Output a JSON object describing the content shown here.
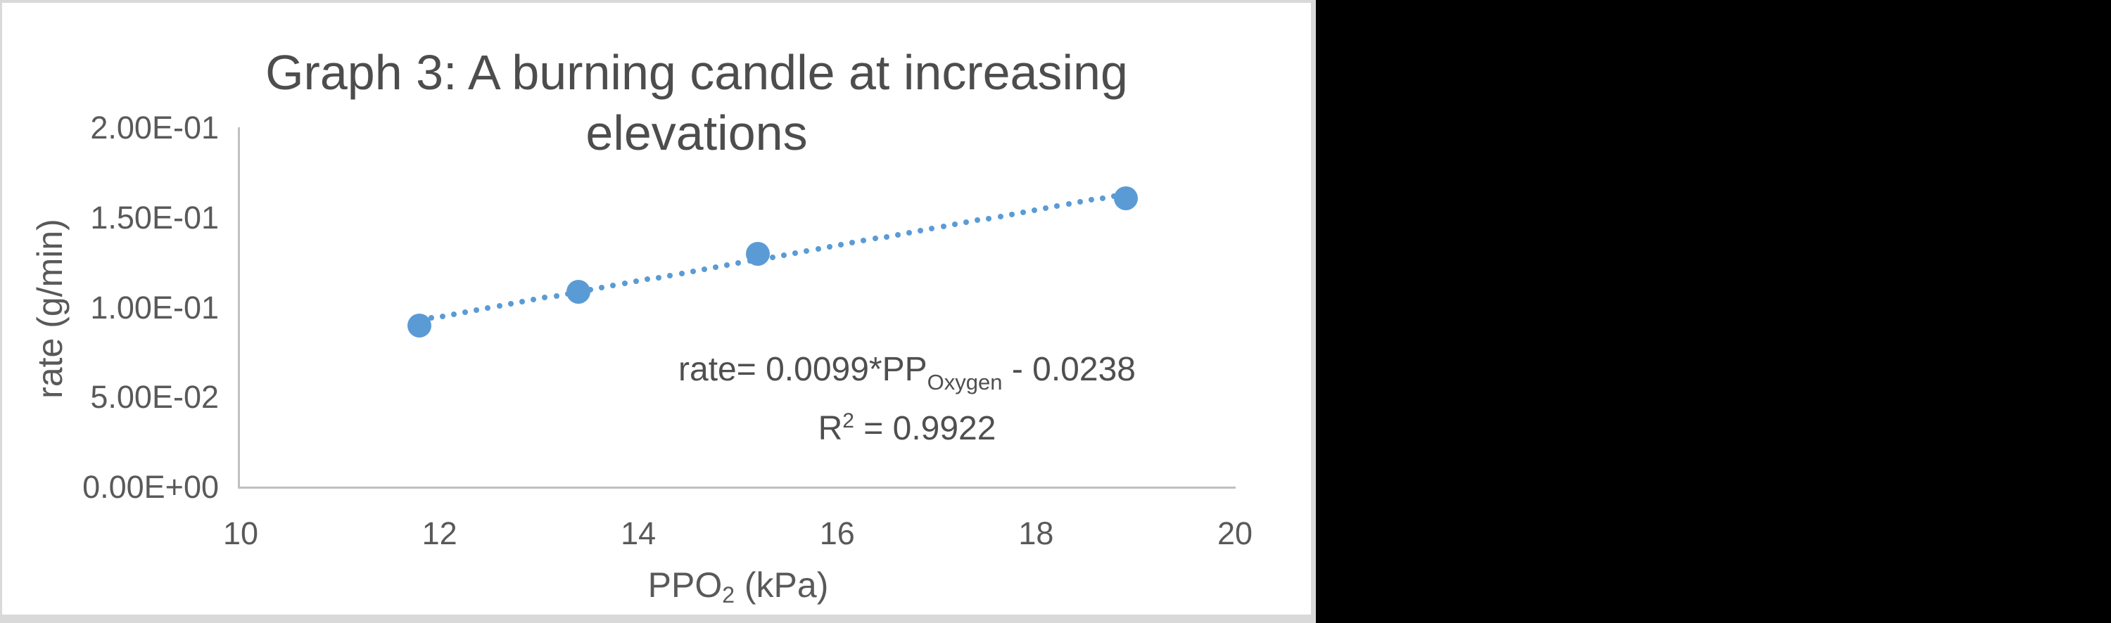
{
  "colors": {
    "background": "#000000",
    "panel": "#ffffff",
    "panel_border": "#d9d9d9",
    "axis_line": "#c0c0c0",
    "tick_text": "#595959",
    "title_text": "#4d4d4d",
    "accent": "#5b9bd5"
  },
  "chart": {
    "title_line1": "Graph 3: A burning candle at increasing",
    "title_line2": "elevations",
    "y_axis": {
      "title": "rate (g/min)",
      "tick_labels": [
        "0.00E+00",
        "5.00E-02",
        "1.00E-01",
        "1.50E-01",
        "2.00E-01"
      ],
      "tick_values": [
        0,
        0.05,
        0.1,
        0.15,
        0.2
      ]
    },
    "x_axis": {
      "title_base": "PPO",
      "title_sub": "2",
      "title_rest": " (kPa)",
      "tick_labels": [
        "10",
        "12",
        "14",
        "16",
        "18",
        "20"
      ],
      "tick_values": [
        10,
        12,
        14,
        16,
        18,
        20
      ]
    },
    "equation": {
      "lhs": "rate= 0.0099*PP",
      "sub": "Oxygen",
      "rhs": " - 0.0238",
      "r2_base": "R",
      "r2_sup": "2",
      "r2_rest": " = 0.9922"
    }
  },
  "chart_data": {
    "type": "scatter",
    "title": "Graph 3: A burning candle at increasing elevations",
    "xlabel": "PPO₂ (kPa)",
    "ylabel": "rate (g/min)",
    "xlim": [
      10,
      20
    ],
    "ylim": [
      0,
      0.2
    ],
    "x_tick_step": 2,
    "y_tick_step": 0.05,
    "grid": false,
    "legend": false,
    "x": [
      11.8,
      13.4,
      15.2,
      18.9
    ],
    "y": [
      0.09,
      0.109,
      0.13,
      0.161
    ],
    "marker_color": "#5b9bd5",
    "trendline": {
      "type": "linear",
      "style": "dotted",
      "slope": 0.0099,
      "intercept": -0.0238,
      "r_squared": 0.9922,
      "x_start": 11.8,
      "x_end": 18.9,
      "equation_text": "rate= 0.0099*PPOxygen - 0.0238",
      "r_squared_text": "R² = 0.9922"
    }
  }
}
